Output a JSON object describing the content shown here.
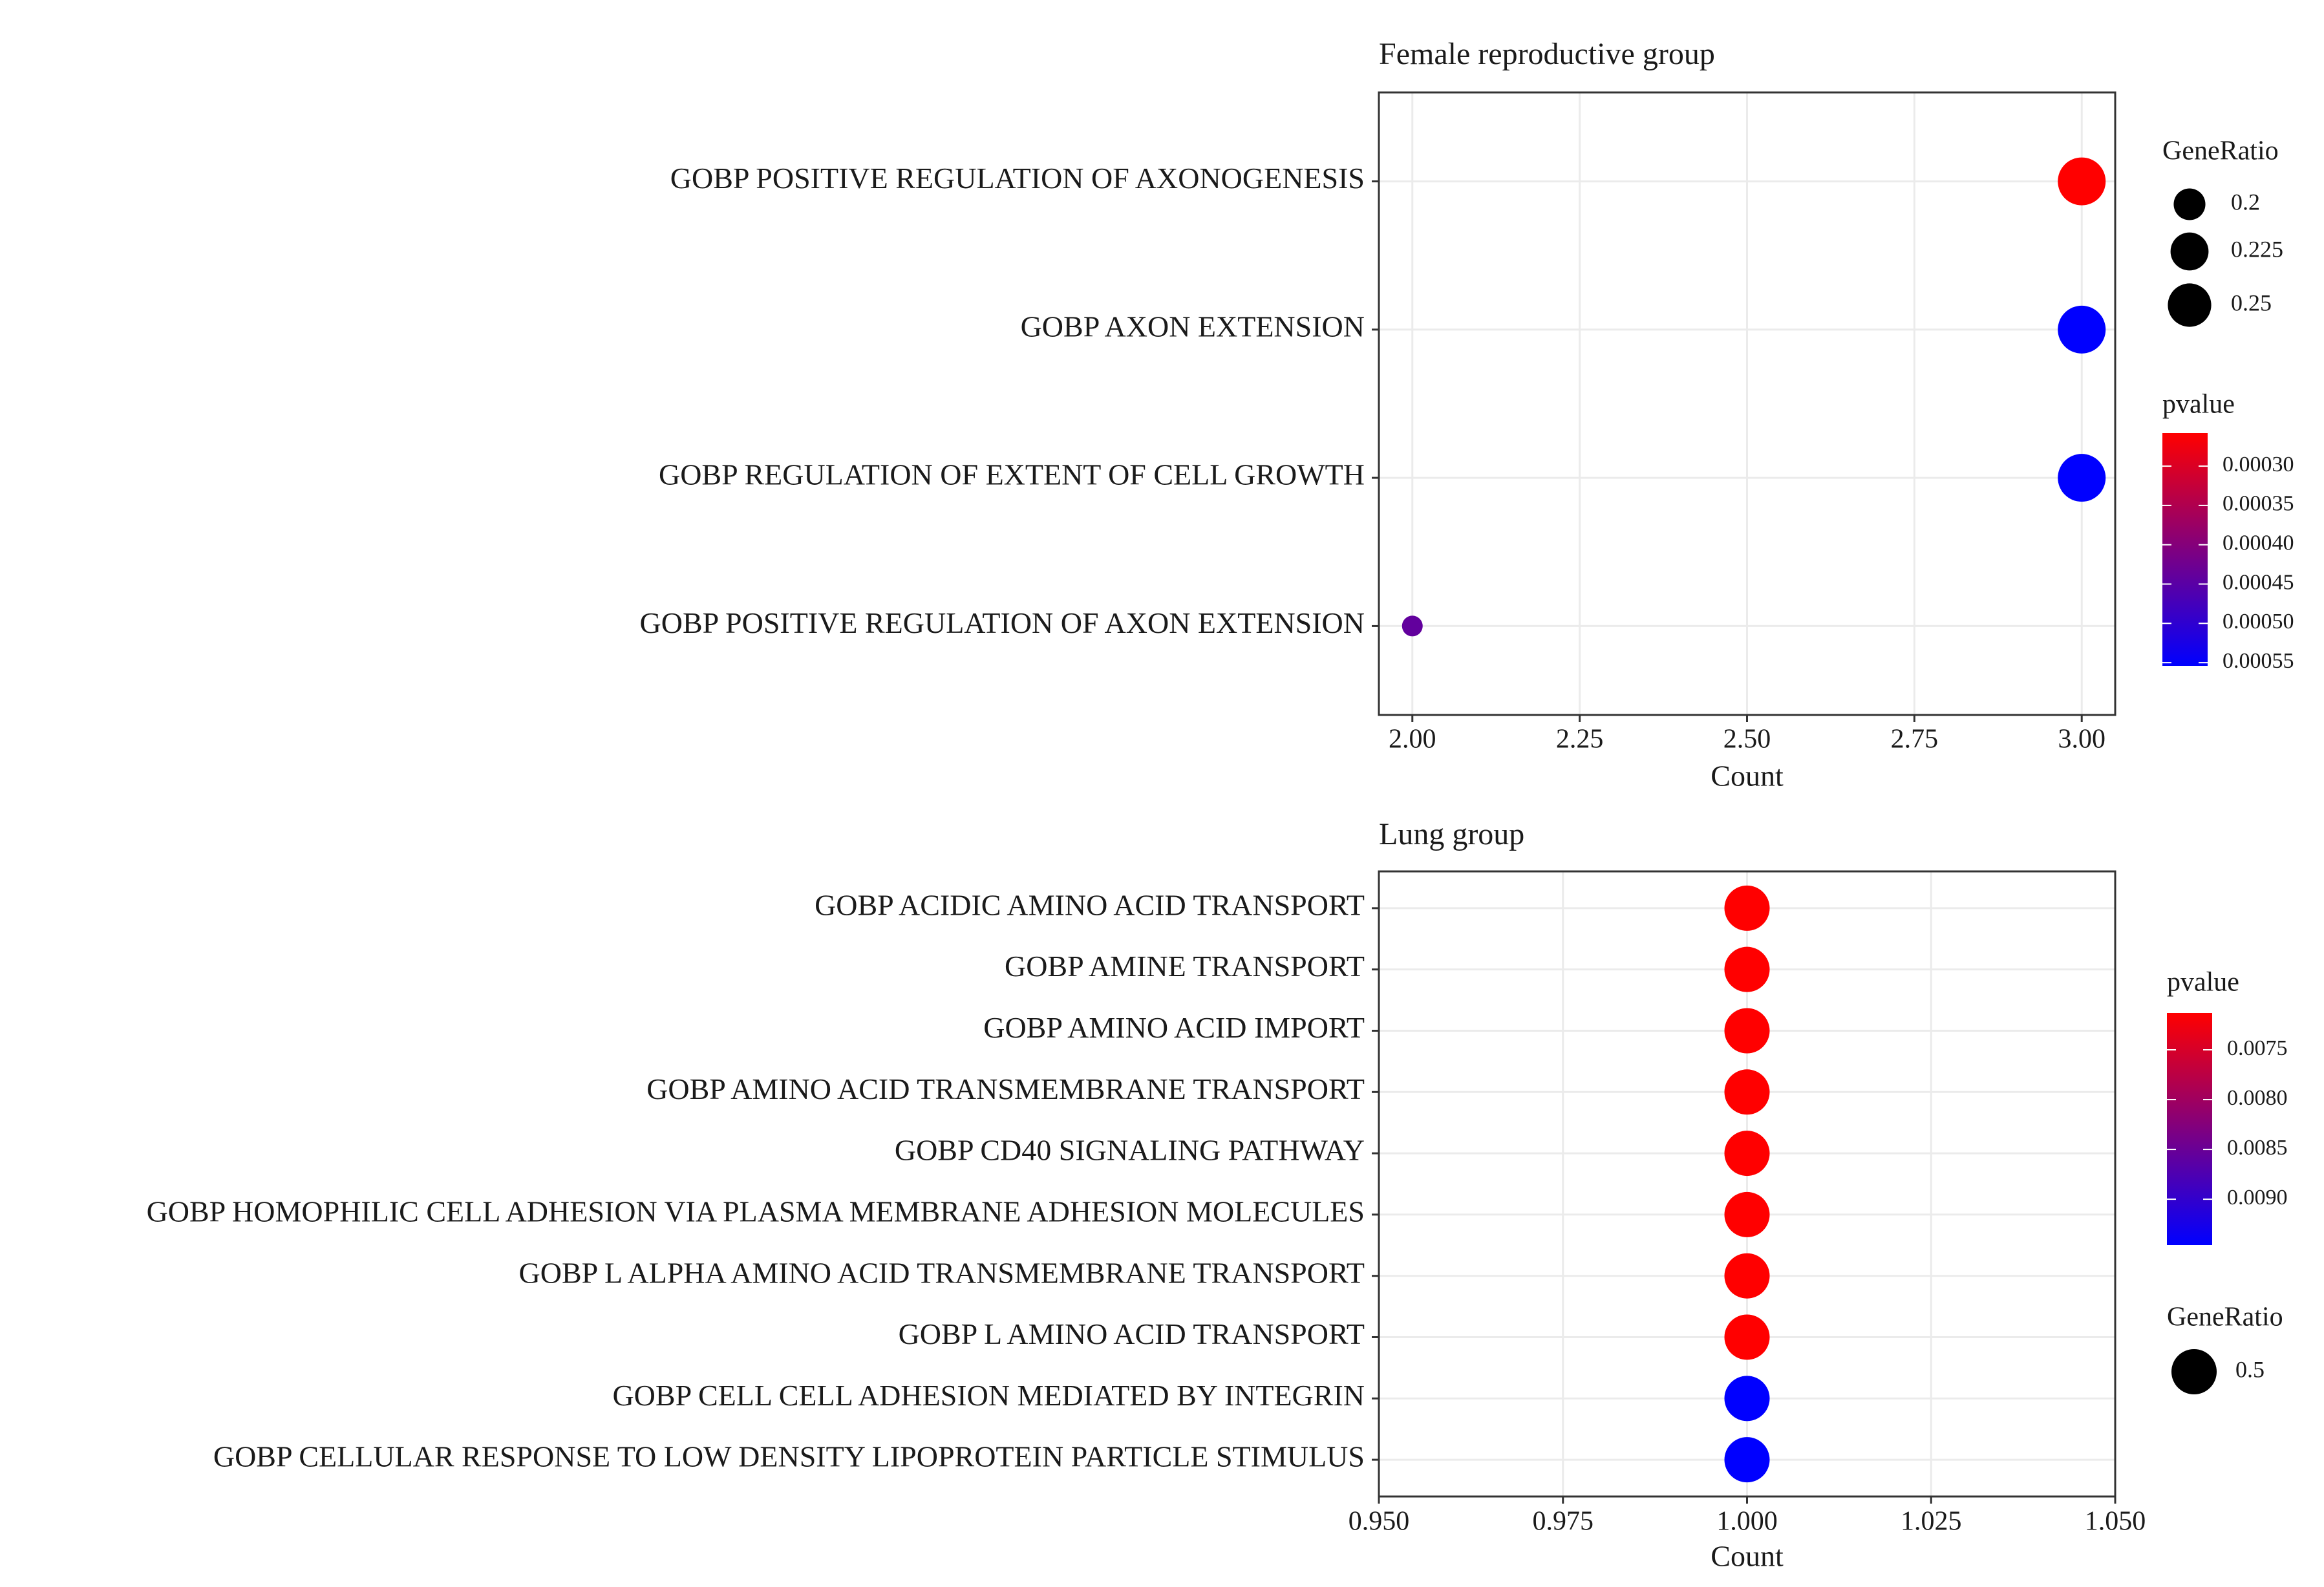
{
  "chart_data": [
    {
      "type": "scatter",
      "title": "Female reproductive group",
      "xlabel": "Count",
      "categories": [
        "GOBP POSITIVE REGULATION OF AXONOGENESIS",
        "GOBP AXON EXTENSION",
        "GOBP REGULATION OF EXTENT OF CELL GROWTH",
        "GOBP POSITIVE REGULATION OF AXON EXTENSION"
      ],
      "values": [
        3,
        3,
        3,
        2
      ],
      "gene_ratio": [
        0.273,
        0.273,
        0.273,
        0.167
      ],
      "pvalue": [
        0.000258,
        0.000554,
        0.000554,
        0.00044
      ],
      "xlim": [
        1.95,
        3.05
      ],
      "xticks": [
        {
          "value": 2,
          "label": "2.00"
        },
        2.25,
        {
          "value": 2.5,
          "label": "2.50"
        },
        2.75,
        {
          "value": 3,
          "label": "3.00"
        }
      ],
      "grid": true,
      "size_legend": {
        "title": "GeneRatio",
        "values": [
          0.2,
          0.225,
          0.25
        ]
      },
      "color_legend": {
        "title": "pvalue",
        "lim": [
          0.000258,
          0.000554
        ],
        "low_color": "#ff0000",
        "high_color": "#0000ff",
        "ticks": [
          {
            "value": 0.0003,
            "label": "0.00030"
          },
          0.00035,
          {
            "value": 0.0004,
            "label": "0.00040"
          },
          0.00045,
          {
            "value": 0.0005,
            "label": "0.00050"
          },
          0.00055
        ]
      }
    },
    {
      "type": "scatter",
      "title": "Lung group",
      "xlabel": "Count",
      "categories": [
        "GOBP ACIDIC AMINO ACID TRANSPORT",
        "GOBP AMINE TRANSPORT",
        "GOBP AMINO ACID IMPORT",
        "GOBP AMINO ACID TRANSMEMBRANE TRANSPORT",
        "GOBP CD40 SIGNALING PATHWAY",
        "GOBP HOMOPHILIC CELL ADHESION VIA PLASMA MEMBRANE ADHESION MOLECULES",
        "GOBP L ALPHA AMINO ACID TRANSMEMBRANE TRANSPORT",
        "GOBP L AMINO ACID TRANSPORT",
        "GOBP CELL CELL ADHESION MEDIATED BY INTEGRIN",
        "GOBP CELLULAR RESPONSE TO LOW DENSITY LIPOPROTEIN PARTICLE STIMULUS"
      ],
      "values": [
        1,
        1,
        1,
        1,
        1,
        1,
        1,
        1,
        1,
        1
      ],
      "gene_ratio": [
        0.5,
        0.5,
        0.5,
        0.5,
        0.5,
        0.5,
        0.5,
        0.5,
        0.5,
        0.5
      ],
      "pvalue": [
        0.00713,
        0.00713,
        0.00713,
        0.00713,
        0.00713,
        0.00713,
        0.00713,
        0.00713,
        0.00946,
        0.00946
      ],
      "xlim": [
        0.95,
        1.05
      ],
      "xticks": [
        {
          "value": 0.95,
          "label": "0.950"
        },
        0.975,
        {
          "value": 1,
          "label": "1.000"
        },
        1.025,
        {
          "value": 1.05,
          "label": "1.050"
        }
      ],
      "grid": true,
      "size_legend": {
        "title": "GeneRatio",
        "values": [
          0.5
        ]
      },
      "color_legend": {
        "title": "pvalue",
        "lim": [
          0.00713,
          0.00946
        ],
        "low_color": "#ff0000",
        "high_color": "#0000ff",
        "ticks": [
          0.0075,
          {
            "value": 0.008,
            "label": "0.0080"
          },
          0.0085,
          {
            "value": 0.009,
            "label": "0.0090"
          }
        ]
      }
    }
  ]
}
